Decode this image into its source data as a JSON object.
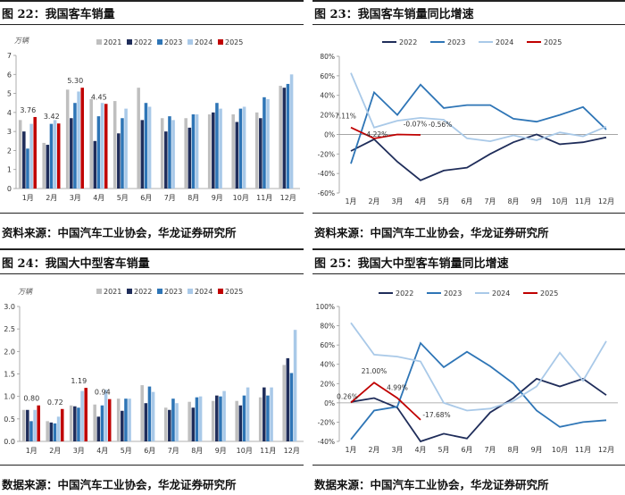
{
  "panels": {
    "p22": {
      "title": "图 22：我国客车销量",
      "source": "资料来源：中国汽车工业协会，华龙证券研究所"
    },
    "p23": {
      "title": "图 23：我国客车销量同比增速",
      "source": "资料来源：中国汽车工业协会，华龙证券研究所"
    },
    "p24": {
      "title": "图 24：我国大中型客车销量",
      "source": "数据来源：中国汽车工业协会，华龙证券研究所"
    },
    "p25": {
      "title": "图 25：我国大中型客车销量同比增速",
      "source": "数据来源：中国汽车工业协会，华龙证券研究所"
    }
  },
  "chart_data": [
    {
      "id": "c22",
      "type": "bar",
      "unit_label": "万辆",
      "categories": [
        "1月",
        "2月",
        "3月",
        "4月",
        "5月",
        "6月",
        "7月",
        "8月",
        "9月",
        "10月",
        "11月",
        "12月"
      ],
      "ylim": [
        0,
        7
      ],
      "yticks": [
        "0",
        "1",
        "2",
        "3",
        "4",
        "5",
        "6",
        "7"
      ],
      "legend_position": "top",
      "series": [
        {
          "name": "2021",
          "color": "#bfbfbf",
          "values": [
            3.6,
            2.4,
            5.2,
            4.7,
            4.6,
            5.3,
            3.7,
            3.7,
            3.9,
            3.9,
            4.0,
            5.4
          ]
        },
        {
          "name": "2022",
          "color": "#1f2d5a",
          "values": [
            3.0,
            2.3,
            3.7,
            2.5,
            2.9,
            3.6,
            3.0,
            3.2,
            4.0,
            3.5,
            3.7,
            5.3
          ]
        },
        {
          "name": "2023",
          "color": "#2e75b6",
          "values": [
            2.1,
            3.4,
            4.5,
            3.8,
            3.7,
            4.5,
            3.8,
            3.9,
            4.5,
            4.2,
            4.8,
            5.5
          ]
        },
        {
          "name": "2024",
          "color": "#a9c9e8",
          "values": [
            3.4,
            3.6,
            5.1,
            4.5,
            4.2,
            4.3,
            3.6,
            3.9,
            4.2,
            4.3,
            4.7,
            6.0
          ]
        },
        {
          "name": "2025",
          "color": "#c00000",
          "values": [
            3.76,
            3.42,
            5.3,
            4.45,
            null,
            null,
            null,
            null,
            null,
            null,
            null,
            null
          ]
        }
      ],
      "data_labels": [
        "3.76",
        "3.42",
        "5.30",
        "4.45"
      ]
    },
    {
      "id": "c23",
      "type": "line",
      "categories": [
        "1月",
        "2月",
        "3月",
        "4月",
        "5月",
        "6月",
        "7月",
        "8月",
        "9月",
        "10月",
        "11月",
        "12月"
      ],
      "ylim": [
        -60,
        80
      ],
      "yticks": [
        "-60%",
        "-40%",
        "-20%",
        "0%",
        "20%",
        "40%",
        "60%",
        "80%"
      ],
      "legend_position": "top",
      "series": [
        {
          "name": "2022",
          "color": "#1f2d5a",
          "values": [
            -17,
            -5,
            -28,
            -47,
            -37,
            -34,
            -20,
            -8,
            0,
            -10,
            -8,
            -3
          ]
        },
        {
          "name": "2023",
          "color": "#2e75b6",
          "values": [
            -30,
            43,
            20,
            51,
            27,
            30,
            30,
            16,
            13,
            20,
            28,
            5
          ]
        },
        {
          "name": "2024",
          "color": "#a9c9e8",
          "values": [
            63,
            7,
            14,
            17,
            15,
            -4,
            -7,
            -1,
            -6,
            2,
            -2,
            8
          ]
        },
        {
          "name": "2025",
          "color": "#c00000",
          "values": [
            7.11,
            -4.22,
            -0.07,
            -0.56,
            null,
            null,
            null,
            null,
            null,
            null,
            null,
            null
          ]
        }
      ],
      "data_labels": [
        "7.11%",
        "-4.22%",
        "-0.07%",
        "-0.56%"
      ]
    },
    {
      "id": "c24",
      "type": "bar",
      "unit_label": "万辆",
      "categories": [
        "1月",
        "2月",
        "3月",
        "4月",
        "5月",
        "6月",
        "7月",
        "8月",
        "9月",
        "10月",
        "11月",
        "12月"
      ],
      "ylim": [
        0,
        3.0
      ],
      "yticks": [
        "0.0",
        "0.5",
        "1.0",
        "1.5",
        "2.0",
        "2.5",
        "3.0"
      ],
      "legend_position": "top",
      "series": [
        {
          "name": "2021",
          "color": "#bfbfbf",
          "values": [
            0.7,
            0.45,
            0.8,
            0.82,
            0.95,
            1.25,
            0.75,
            0.88,
            0.9,
            0.9,
            0.98,
            1.7
          ]
        },
        {
          "name": "2022",
          "color": "#1f2d5a",
          "values": [
            0.7,
            0.42,
            0.78,
            0.55,
            0.68,
            0.85,
            0.7,
            0.75,
            1.02,
            0.8,
            1.2,
            1.85
          ]
        },
        {
          "name": "2023",
          "color": "#2e75b6",
          "values": [
            0.45,
            0.4,
            0.75,
            0.8,
            0.95,
            1.22,
            0.95,
            0.98,
            1.0,
            1.02,
            1.02,
            1.52
          ]
        },
        {
          "name": "2024",
          "color": "#a9c9e8",
          "values": [
            0.7,
            0.55,
            1.12,
            1.15,
            0.95,
            1.1,
            0.85,
            1.0,
            1.12,
            1.2,
            1.2,
            2.48
          ]
        },
        {
          "name": "2025",
          "color": "#c00000",
          "values": [
            0.8,
            0.72,
            1.19,
            0.94,
            null,
            null,
            null,
            null,
            null,
            null,
            null,
            null
          ]
        }
      ],
      "data_labels": [
        "0.80",
        "0.72",
        "1.19",
        "0.94"
      ]
    },
    {
      "id": "c25",
      "type": "line",
      "categories": [
        "1月",
        "2月",
        "3月",
        "4月",
        "5月",
        "6月",
        "7月",
        "8月",
        "9月",
        "10月",
        "11月",
        "12月"
      ],
      "ylim": [
        -40,
        100
      ],
      "yticks": [
        "-40%",
        "-20%",
        "0%",
        "20%",
        "40%",
        "60%",
        "80%",
        "100%"
      ],
      "legend_position": "top",
      "series": [
        {
          "name": "2022",
          "color": "#1f2d5a",
          "values": [
            1,
            5,
            -5,
            -40,
            -32,
            -37,
            -10,
            5,
            25,
            17,
            25,
            8
          ]
        },
        {
          "name": "2023",
          "color": "#2e75b6",
          "values": [
            -38,
            -8,
            -4,
            62,
            37,
            53,
            38,
            20,
            -8,
            -25,
            -20,
            -18
          ]
        },
        {
          "name": "2024",
          "color": "#a9c9e8",
          "values": [
            83,
            50,
            48,
            43,
            0,
            -8,
            -6,
            2,
            17,
            52,
            23,
            64
          ]
        },
        {
          "name": "2025",
          "color": "#c00000",
          "values": [
            0.26,
            21.0,
            4.99,
            -17.68,
            null,
            null,
            null,
            null,
            null,
            null,
            null,
            null
          ]
        }
      ],
      "data_labels": [
        "0.26%",
        "21.00%",
        "4.99%",
        "-17.68%"
      ]
    }
  ]
}
